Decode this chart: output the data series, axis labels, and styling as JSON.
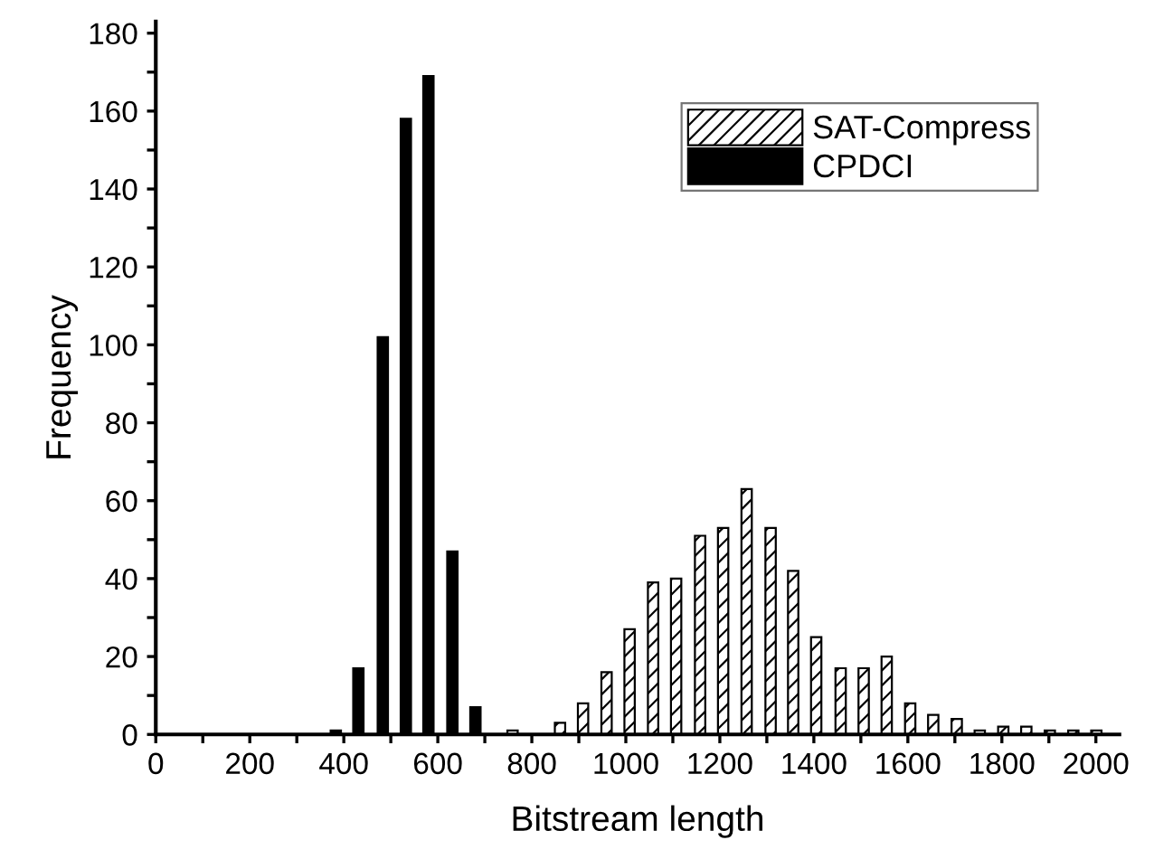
{
  "chart_data": {
    "type": "bar",
    "xlabel": "Bitstream length",
    "ylabel": "Frequency",
    "xlim": [
      0,
      2050
    ],
    "ylim": [
      0,
      183
    ],
    "xticks": [
      0,
      {
        "value": 100,
        "label": null
      },
      200,
      {
        "value": 300,
        "label": null
      },
      400,
      {
        "value": 500,
        "label": null
      },
      600,
      {
        "value": 700,
        "label": null
      },
      800,
      {
        "value": 900,
        "label": null
      },
      1000,
      {
        "value": 1100,
        "label": null
      },
      1200,
      {
        "value": 1300,
        "label": null
      },
      1400,
      {
        "value": 1500,
        "label": null
      },
      1600,
      {
        "value": 1700,
        "label": null
      },
      1800,
      {
        "value": 1900,
        "label": null
      },
      2000
    ],
    "yticks": [
      0,
      {
        "value": 10,
        "label": null
      },
      20,
      {
        "value": 30,
        "label": null
      },
      40,
      {
        "value": 50,
        "label": null
      },
      60,
      {
        "value": 70,
        "label": null
      },
      80,
      {
        "value": 90,
        "label": null
      },
      100,
      {
        "value": 110,
        "label": null
      },
      120,
      {
        "value": 130,
        "label": null
      },
      140,
      {
        "value": 150,
        "label": null
      },
      160,
      {
        "value": 170,
        "label": null
      },
      180
    ],
    "grid": false,
    "legend": "top right",
    "series": [
      {
        "name": "SAT-Compress",
        "color": "#000000",
        "x": [
          759,
          860,
          909,
          959,
          1008,
          1058,
          1107,
          1158,
          1207,
          1257,
          1308,
          1356,
          1405,
          1457,
          1506,
          1555,
          1605,
          1654,
          1704,
          1753,
          1803,
          1852,
          1902,
          1952,
          2001
        ],
        "values": [
          1,
          3,
          8,
          16,
          27,
          39,
          40,
          51,
          53,
          63,
          53,
          42,
          25,
          17,
          17,
          20,
          8,
          5,
          4,
          1,
          2,
          2,
          1,
          1,
          1
        ]
      },
      {
        "name": "CPDCI",
        "color": "#000000",
        "x": [
          383,
          431,
          483,
          532,
          580,
          631,
          680
        ],
        "values": [
          1,
          17,
          102,
          158,
          169,
          47,
          7
        ]
      }
    ]
  }
}
